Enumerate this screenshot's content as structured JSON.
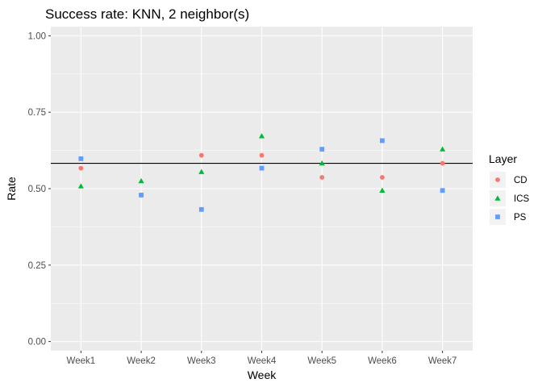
{
  "chart_data": {
    "type": "scatter",
    "title": "Success rate: KNN, 2 neighbor(s)",
    "xlabel": "Week",
    "ylabel": "Rate",
    "categories": [
      "Week1",
      "Week2",
      "Week3",
      "Week4",
      "Week5",
      "Week6",
      "Week7"
    ],
    "ylim": [
      -0.03,
      1.03
    ],
    "yticks": [
      0.0,
      0.25,
      0.5,
      0.75,
      1.0
    ],
    "ytick_labels": [
      "0.00",
      "0.25",
      "0.50",
      "0.75",
      "1.00"
    ],
    "hline": 0.583,
    "grid": true,
    "legend": {
      "title": "Layer",
      "placement": "right"
    },
    "series": [
      {
        "name": "CD",
        "shape": "circle",
        "color": "#F8766D",
        "values": [
          0.567,
          0.479,
          0.609,
          0.609,
          0.537,
          0.537,
          0.583
        ]
      },
      {
        "name": "ICS",
        "shape": "triangle",
        "color": "#00BA38",
        "values": [
          0.508,
          0.525,
          0.555,
          0.672,
          0.583,
          0.494,
          0.629
        ]
      },
      {
        "name": "PS",
        "shape": "square",
        "color": "#619CFF",
        "values": [
          0.598,
          0.479,
          0.432,
          0.567,
          0.629,
          0.657,
          0.494
        ]
      }
    ]
  }
}
